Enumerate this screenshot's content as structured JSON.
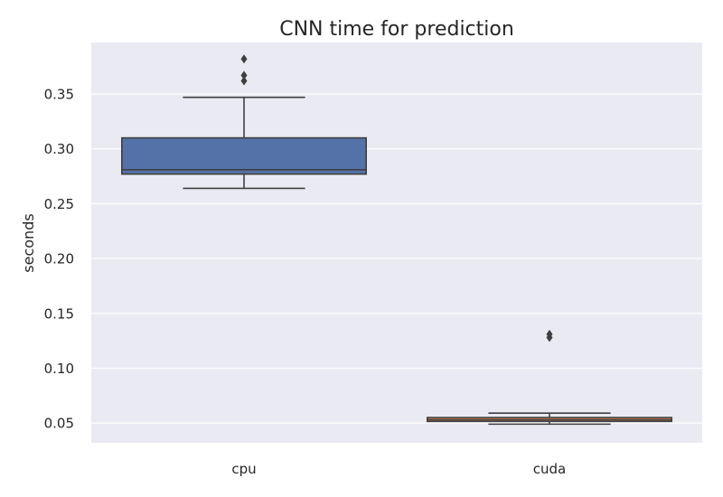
{
  "chart_data": {
    "type": "box",
    "title": "CNN time for prediction",
    "xlabel": "",
    "ylabel": "seconds",
    "categories": [
      "cpu",
      "cuda"
    ],
    "ylim": [
      0.032,
      0.397
    ],
    "yticks": [
      0.05,
      0.1,
      0.15,
      0.2,
      0.25,
      0.3,
      0.35
    ],
    "ytick_labels": [
      "0.05",
      "0.10",
      "0.15",
      "0.20",
      "0.25",
      "0.30",
      "0.35"
    ],
    "grid": true,
    "boxes": [
      {
        "category": "cpu",
        "whisker_low": 0.264,
        "q1": 0.277,
        "median": 0.281,
        "q3": 0.31,
        "whisker_high": 0.347,
        "outliers": [
          0.362,
          0.367,
          0.382
        ],
        "color": "#5572a8"
      },
      {
        "category": "cuda",
        "whisker_low": 0.049,
        "q1": 0.0515,
        "median": 0.053,
        "q3": 0.055,
        "whisker_high": 0.059,
        "outliers": [
          0.128,
          0.131
        ],
        "color": "#dd8452"
      }
    ],
    "colors": {
      "background": "#eaeaf2",
      "grid": "#ffffff",
      "line": "#3f3f3f",
      "text": "#262626"
    }
  }
}
